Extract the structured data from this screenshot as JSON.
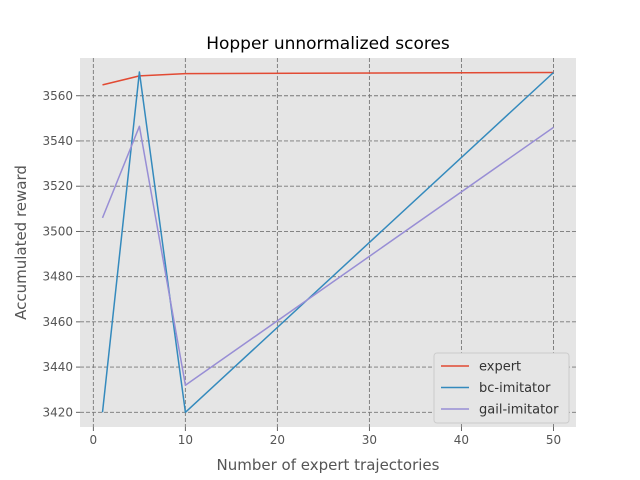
{
  "chart_data": {
    "type": "line",
    "title": "Hopper unnormalized scores",
    "xlabel": "Number of expert trajectories",
    "ylabel": "Accumulated reward",
    "xlim": [
      -1.45,
      52.45
    ],
    "ylim": [
      3413.5,
      3576.7
    ],
    "xticks": [
      0,
      10,
      20,
      30,
      40,
      50
    ],
    "yticks": [
      3420,
      3440,
      3460,
      3480,
      3500,
      3520,
      3540,
      3560
    ],
    "grid": true,
    "legend_position": "lower-right",
    "series": [
      {
        "name": "expert",
        "color": "#E24A33",
        "x": [
          1,
          5,
          10,
          50
        ],
        "y": [
          3564.8,
          3568.8,
          3569.8,
          3570.3
        ]
      },
      {
        "name": "bc-imitator",
        "color": "#348ABD",
        "x": [
          1,
          5,
          10,
          50
        ],
        "y": [
          3420.0,
          3570.5,
          3420.0,
          3570.3
        ]
      },
      {
        "name": "gail-imitator",
        "color": "#988ED5",
        "x": [
          1,
          5,
          10,
          50
        ],
        "y": [
          3506.0,
          3546.5,
          3432.0,
          3546.0
        ]
      }
    ]
  }
}
